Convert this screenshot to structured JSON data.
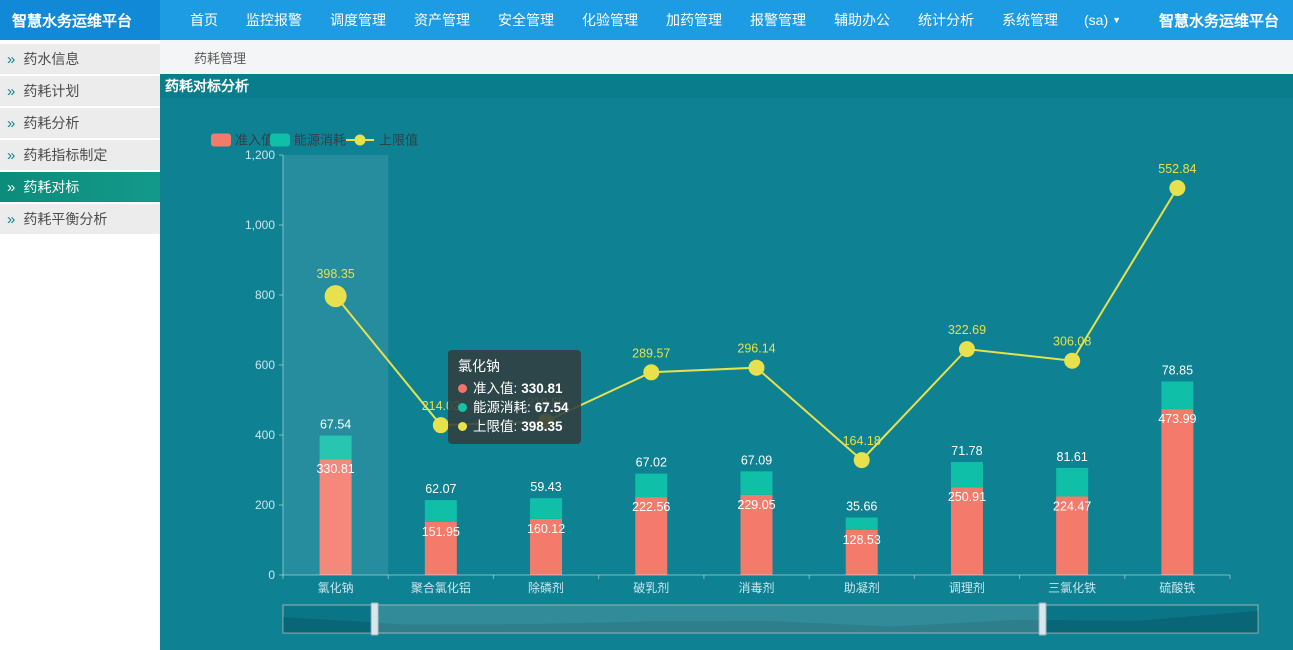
{
  "app": {
    "logo_title": "智慧水务运维平台",
    "right_title": "智慧水务运维平台"
  },
  "nav": {
    "items": [
      "首页",
      "监控报警",
      "调度管理",
      "资产管理",
      "安全管理",
      "化验管理",
      "加药管理",
      "报警管理",
      "辅助办公",
      "统计分析",
      "系统管理"
    ],
    "user_label": "(sa)",
    "user_caret": "▼"
  },
  "sidebar": {
    "icon_glyph": "»",
    "items": [
      {
        "label": "药水信息",
        "active": false
      },
      {
        "label": "药耗计划",
        "active": false
      },
      {
        "label": "药耗分析",
        "active": false
      },
      {
        "label": "药耗指标制定",
        "active": false
      },
      {
        "label": "药耗对标",
        "active": true
      },
      {
        "label": "药耗平衡分析",
        "active": false
      }
    ]
  },
  "breadcrumb": {
    "label": "药耗管理"
  },
  "page": {
    "title": "药耗对标分析"
  },
  "chart_data": {
    "type": "bar",
    "subtype": "stacked-bars-with-line",
    "title": "药耗对标分析",
    "categories": [
      "氯化钠",
      "聚合氯化铝",
      "除磷剂",
      "破乳剂",
      "消毒剂",
      "助凝剂",
      "调理剂",
      "三氯化铁",
      "硫酸铁"
    ],
    "series": [
      {
        "name": "准入值",
        "type": "bar",
        "stack": "total",
        "color": "#f47b6b",
        "values": [
          330.81,
          151.95,
          160.12,
          222.56,
          229.05,
          128.53,
          250.91,
          224.47,
          473.99
        ]
      },
      {
        "name": "能源消耗",
        "type": "bar",
        "stack": "total",
        "color": "#10bfa8",
        "values": [
          67.54,
          62.07,
          59.43,
          67.02,
          67.09,
          35.66,
          71.78,
          81.61,
          78.85
        ]
      },
      {
        "name": "上限值",
        "type": "line",
        "color": "#e7e14d",
        "values": [
          398.35,
          214.02,
          219.55,
          289.57,
          296.14,
          164.18,
          322.69,
          306.08,
          552.84
        ]
      }
    ],
    "ylim": [
      0,
      1200
    ],
    "yticks": [
      "0",
      "200",
      "400",
      "600",
      "800",
      "1,000",
      "1,200"
    ],
    "line_ylim": [
      0,
      600
    ],
    "grid": false,
    "legend_position": "top-left",
    "highlighted_category_index": 0,
    "label_color_values": "#ffffff",
    "label_color_line": "#e7e14d",
    "axis_text_color": "#cbe7ec"
  },
  "tooltip": {
    "title": "氯化钠",
    "rows": [
      {
        "label": "准入值",
        "value": "330.81",
        "color": "#f4736d"
      },
      {
        "label": "能源消耗",
        "value": "67.54",
        "color": "#12c3a6"
      },
      {
        "label": "上限值",
        "value": "398.35",
        "color": "#e8e24c"
      }
    ]
  },
  "datazoom": {
    "window_start": 0.094,
    "window_end": 0.779,
    "track_color": "#0a7586",
    "selected_color": "rgba(255,255,255,0.16)",
    "handle_color": "#d8e7ec",
    "border_color": "#9db2b8"
  }
}
